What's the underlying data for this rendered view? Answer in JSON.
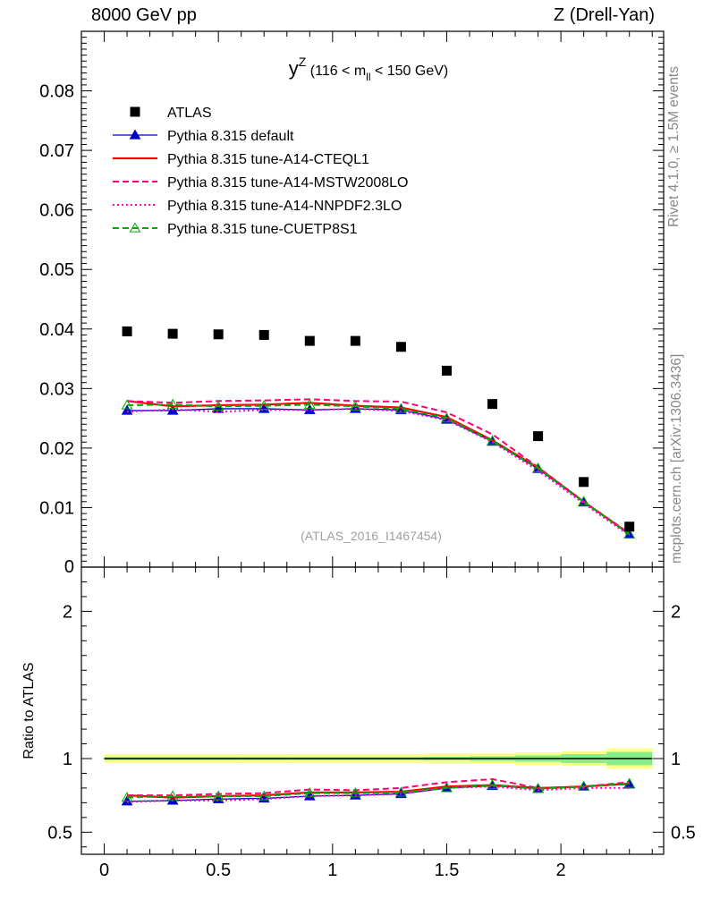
{
  "header": {
    "left": "8000 GeV pp",
    "right": "Z (Drell-Yan)",
    "side_top": "Rivet 4.1.0, ≥ 1.5M events",
    "side_bottom": "mcplots.cern.ch [arXiv:1306.3436]"
  },
  "chart_data": {
    "type": "line",
    "title": "y^Z (116 < m_ll < 150 GeV)",
    "title_main": "y",
    "title_sup": "Z",
    "title_pre": "(116 < m",
    "title_sub": "ll",
    "title_post": " < 150 GeV)",
    "watermark": "(ATLAS_2016_I1467454)",
    "xlabel": "",
    "ylabel": "",
    "ratio_ylabel": "Ratio to ATLAS",
    "xlim": [
      -0.1,
      2.45
    ],
    "ylim": [
      0,
      0.09
    ],
    "ratio_ylim": [
      0.35,
      2.3
    ],
    "x_ticks": [
      "0",
      "0.5",
      "1",
      "1.5",
      "2"
    ],
    "y_ticks": [
      "0",
      "0.01",
      "0.02",
      "0.03",
      "0.04",
      "0.05",
      "0.06",
      "0.07",
      "0.08"
    ],
    "ratio_ticks": [
      "0.5",
      "1",
      "2"
    ],
    "legend_position": "top-left",
    "x": [
      0.1,
      0.3,
      0.5,
      0.7,
      0.9,
      1.1,
      1.3,
      1.5,
      1.7,
      1.9,
      2.1,
      2.3
    ],
    "bin_edges": [
      0.0,
      0.2,
      0.4,
      0.6,
      0.8,
      1.0,
      1.2,
      1.4,
      1.6,
      1.8,
      2.0,
      2.2,
      2.4
    ],
    "data": {
      "name": "ATLAS",
      "values": [
        0.0396,
        0.0392,
        0.0391,
        0.039,
        0.038,
        0.038,
        0.037,
        0.033,
        0.0274,
        0.022,
        0.0143,
        0.0068
      ],
      "band_inner": [
        0.01,
        0.01,
        0.01,
        0.01,
        0.01,
        0.01,
        0.01,
        0.012,
        0.016,
        0.022,
        0.03,
        0.045
      ],
      "band_outer": [
        0.03,
        0.03,
        0.03,
        0.03,
        0.03,
        0.03,
        0.03,
        0.032,
        0.036,
        0.042,
        0.05,
        0.07
      ]
    },
    "series": [
      {
        "name": "Pythia 8.315 default",
        "color": "#0000cc",
        "style": "solid-triangle",
        "values": [
          0.0263,
          0.0263,
          0.0266,
          0.0266,
          0.0264,
          0.0266,
          0.0264,
          0.0248,
          0.0211,
          0.0165,
          0.0109,
          0.0055
        ],
        "ratio": [
          0.71,
          0.715,
          0.725,
          0.73,
          0.745,
          0.75,
          0.76,
          0.8,
          0.815,
          0.795,
          0.81,
          0.825
        ]
      },
      {
        "name": "Pythia 8.315 tune-A14-CTEQL1",
        "color": "#ff0000",
        "style": "solid",
        "values": [
          0.0279,
          0.027,
          0.0272,
          0.0273,
          0.0276,
          0.0271,
          0.0268,
          0.0252,
          0.0213,
          0.0167,
          0.011,
          0.0056
        ],
        "ratio": [
          0.75,
          0.735,
          0.745,
          0.75,
          0.77,
          0.77,
          0.775,
          0.81,
          0.82,
          0.8,
          0.81,
          0.83
        ]
      },
      {
        "name": "Pythia 8.315 tune-A14-MSTW2008LO",
        "color": "#ff0077",
        "style": "dashed",
        "values": [
          0.0279,
          0.0276,
          0.0279,
          0.028,
          0.0282,
          0.0279,
          0.0278,
          0.026,
          0.0223,
          0.0168,
          0.011,
          0.0057
        ],
        "ratio": [
          0.75,
          0.75,
          0.76,
          0.765,
          0.79,
          0.785,
          0.8,
          0.84,
          0.86,
          0.8,
          0.81,
          0.84
        ]
      },
      {
        "name": "Pythia 8.315 tune-A14-NNPDF2.3LO",
        "color": "#ff00cc",
        "style": "dotted",
        "values": [
          0.0261,
          0.0265,
          0.0261,
          0.0264,
          0.0264,
          0.0266,
          0.0262,
          0.0247,
          0.021,
          0.0162,
          0.0107,
          0.0053
        ],
        "ratio": [
          0.705,
          0.715,
          0.715,
          0.725,
          0.745,
          0.75,
          0.76,
          0.8,
          0.81,
          0.785,
          0.8,
          0.8
        ]
      },
      {
        "name": "Pythia 8.315 tune-CUETP8S1",
        "color": "#00aa00",
        "style": "dashed-open-triangle",
        "values": [
          0.0272,
          0.0273,
          0.027,
          0.0271,
          0.0273,
          0.027,
          0.0266,
          0.025,
          0.0212,
          0.0166,
          0.011,
          0.0055
        ],
        "ratio": [
          0.735,
          0.745,
          0.745,
          0.745,
          0.765,
          0.765,
          0.77,
          0.8,
          0.82,
          0.795,
          0.81,
          0.83
        ]
      }
    ]
  }
}
